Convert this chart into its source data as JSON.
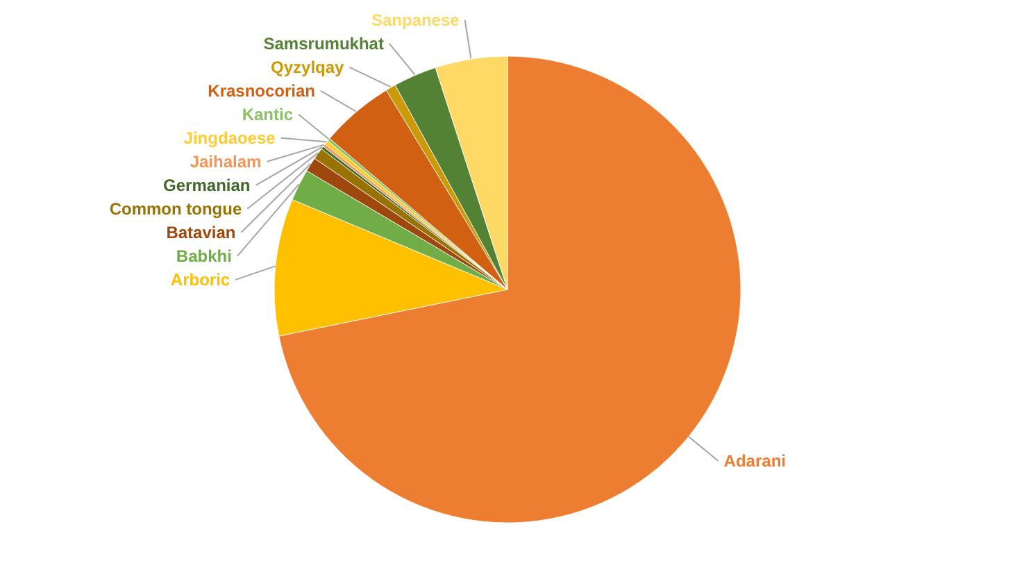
{
  "chart_data": {
    "type": "pie",
    "categories": [
      "Adarani",
      "Arboric",
      "Babkhi",
      "Batavian",
      "Common tongue",
      "Germanian",
      "Jaihalam",
      "Jingdaoese",
      "Kantic",
      "Krasnocorian",
      "Qyzylqay",
      "Samsrumukhat",
      "Sanpanese"
    ],
    "values": [
      71.8,
      9.5,
      2.2,
      1.0,
      0.8,
      0.2,
      0.2,
      0.3,
      0.2,
      5.1,
      0.7,
      3.0,
      5.0
    ],
    "colors": [
      "#ed7d31",
      "#ffc000",
      "#70ad47",
      "#9e480e",
      "#997300",
      "#43682b",
      "#f1975a",
      "#ffcd33",
      "#8cc168",
      "#d26012",
      "#cc9a06",
      "#548235",
      "#ffd966"
    ]
  }
}
